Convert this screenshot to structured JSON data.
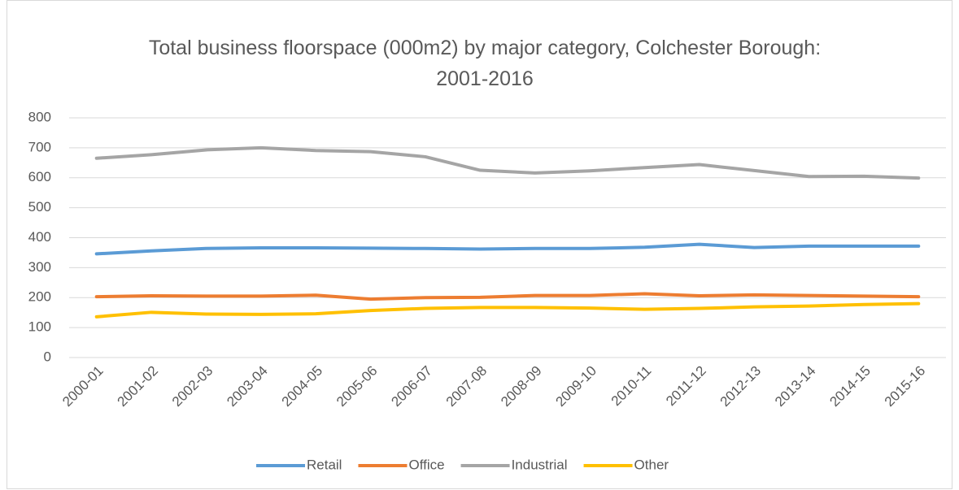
{
  "chart_data": {
    "type": "line",
    "title": "Total business floorspace (000m2) by major category, Colchester Borough: 2001-2016",
    "categories": [
      "2000-01",
      "2001-02",
      "2002-03",
      "2003-04",
      "2004-05",
      "2005-06",
      "2006-07",
      "2007-08",
      "2008-09",
      "2009-10",
      "2010-11",
      "2011-12",
      "2012-13",
      "2013-14",
      "2014-15",
      "2015-16"
    ],
    "series": [
      {
        "name": "Retail",
        "color": "#5b9bd5",
        "values": [
          346,
          356,
          364,
          366,
          366,
          365,
          364,
          362,
          364,
          364,
          368,
          378,
          367,
          372,
          372,
          372
        ]
      },
      {
        "name": "Office",
        "color": "#ed7d31",
        "values": [
          203,
          206,
          205,
          205,
          208,
          195,
          200,
          201,
          207,
          207,
          213,
          206,
          209,
          207,
          205,
          203
        ]
      },
      {
        "name": "Industrial",
        "color": "#a5a5a5",
        "values": [
          665,
          677,
          693,
          700,
          691,
          687,
          670,
          625,
          616,
          623,
          634,
          644,
          624,
          604,
          605,
          599
        ]
      },
      {
        "name": "Other",
        "color": "#ffc000",
        "values": [
          136,
          151,
          145,
          144,
          146,
          157,
          164,
          167,
          167,
          165,
          161,
          164,
          169,
          172,
          177,
          180
        ]
      }
    ],
    "ylim": [
      0,
      800
    ],
    "yticks": [
      0,
      100,
      200,
      300,
      400,
      500,
      600,
      700,
      800
    ],
    "grid": true,
    "legend": "bottom"
  }
}
